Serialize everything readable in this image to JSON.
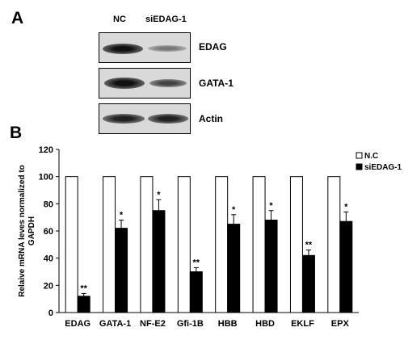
{
  "panels": {
    "a_label": "A",
    "b_label": "B"
  },
  "blot": {
    "lanes": [
      "NC",
      "siEDAG-1"
    ],
    "rows": [
      {
        "label": "EDAG",
        "nc_intensity": 0.9,
        "si_intensity": 0.35
      },
      {
        "label": "GATA-1",
        "nc_intensity": 0.85,
        "si_intensity": 0.45
      },
      {
        "label": "Actin",
        "nc_intensity": 0.8,
        "si_intensity": 0.8
      }
    ]
  },
  "chart_data": {
    "type": "bar",
    "ylabel": "Relaive mRNA leves normalized to GAPDH",
    "ylim": [
      0,
      120
    ],
    "yticks": [
      0,
      20,
      40,
      60,
      80,
      100,
      120
    ],
    "categories": [
      "EDAG",
      "GATA-1",
      "NF-E2",
      "Gfi-1B",
      "HBB",
      "HBD",
      "EKLF",
      "EPX"
    ],
    "series": [
      {
        "name": "N.C",
        "color": "#ffffff",
        "values": [
          100,
          100,
          100,
          100,
          100,
          100,
          100,
          100
        ]
      },
      {
        "name": "siEDAG-1",
        "color": "#000000",
        "values": [
          12,
          62,
          75,
          30,
          65,
          68,
          42,
          67
        ],
        "errors": [
          2,
          6,
          8,
          3,
          7,
          7,
          4,
          7
        ],
        "significance": [
          "**",
          "*",
          "*",
          "**",
          "*",
          "*",
          "**",
          "*"
        ]
      }
    ],
    "legend_position": "top-right"
  }
}
